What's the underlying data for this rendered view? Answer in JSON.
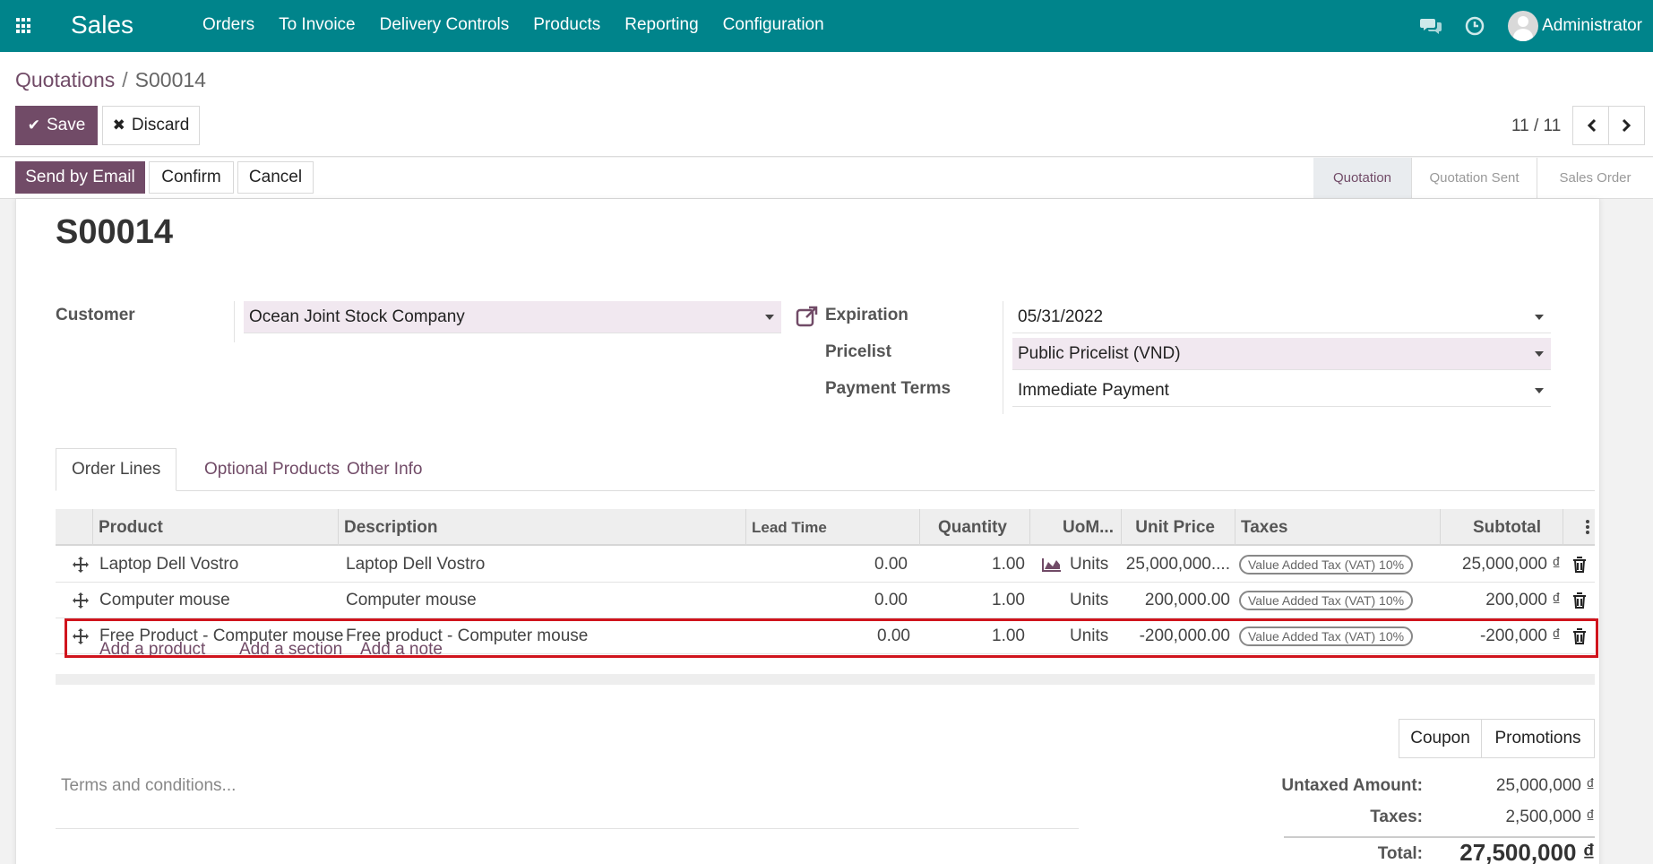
{
  "app": {
    "brand": "Sales",
    "menu": [
      "Orders",
      "To Invoice",
      "Delivery Controls",
      "Products",
      "Reporting",
      "Configuration"
    ],
    "user": "Administrator"
  },
  "breadcrumb": {
    "parent": "Quotations",
    "separator": "/",
    "current": "S00014"
  },
  "toolbar": {
    "save_label": "Save",
    "discard_label": "Discard"
  },
  "pager": {
    "text": "11 / 11"
  },
  "statusbar": {
    "send_label": "Send by Email",
    "confirm_label": "Confirm",
    "cancel_label": "Cancel",
    "stages": [
      "Quotation",
      "Quotation Sent",
      "Sales Order"
    ],
    "active_stage": "Quotation"
  },
  "form": {
    "title": "S00014",
    "customer_label": "Customer",
    "customer_value": "Ocean Joint Stock Company",
    "expiration_label": "Expiration",
    "expiration_value": "05/31/2022",
    "pricelist_label": "Pricelist",
    "pricelist_value": "Public Pricelist (VND)",
    "payment_terms_label": "Payment Terms",
    "payment_terms_value": "Immediate Payment"
  },
  "tabs": [
    "Order Lines",
    "Optional Products",
    "Other Info"
  ],
  "table": {
    "headers": {
      "product": "Product",
      "description": "Description",
      "lead_time": "Lead Time",
      "quantity": "Quantity",
      "uom": "UoM...",
      "unit_price": "Unit Price",
      "taxes": "Taxes",
      "subtotal": "Subtotal"
    },
    "rows": [
      {
        "product": "Laptop Dell Vostro",
        "description": "Laptop Dell Vostro",
        "lead_time": "0.00",
        "quantity": "1.00",
        "uom": "Units",
        "unit_price": "25,000,000....",
        "tax": "Value Added Tax (VAT) 10%",
        "subtotal": "25,000,000 ₫"
      },
      {
        "product": "Computer mouse",
        "description": "Computer mouse",
        "lead_time": "0.00",
        "quantity": "1.00",
        "uom": "Units",
        "unit_price": "200,000.00",
        "tax": "Value Added Tax (VAT) 10%",
        "subtotal": "200,000 ₫"
      },
      {
        "product": "Free Product - Computer mouse",
        "description": "Free product - Computer mouse",
        "lead_time": "0.00",
        "quantity": "1.00",
        "uom": "Units",
        "unit_price": "-200,000.00",
        "tax": "Value Added Tax (VAT) 10%",
        "subtotal": "-200,000 ₫"
      }
    ],
    "add_product": "Add a product",
    "add_section": "Add a section",
    "add_note": "Add a note"
  },
  "buttons": {
    "coupon": "Coupon",
    "promotions": "Promotions"
  },
  "terms_placeholder": "Terms and conditions...",
  "totals": {
    "untaxed_label": "Untaxed Amount:",
    "untaxed_value": "25,000,000 ₫",
    "taxes_label": "Taxes:",
    "taxes_value": "2,500,000 ₫",
    "total_label": "Total:",
    "total_value": "27,500,000 ₫"
  },
  "colors": {
    "navbar": "#00848b",
    "primary": "#714b67",
    "highlight": "#d0141d"
  }
}
